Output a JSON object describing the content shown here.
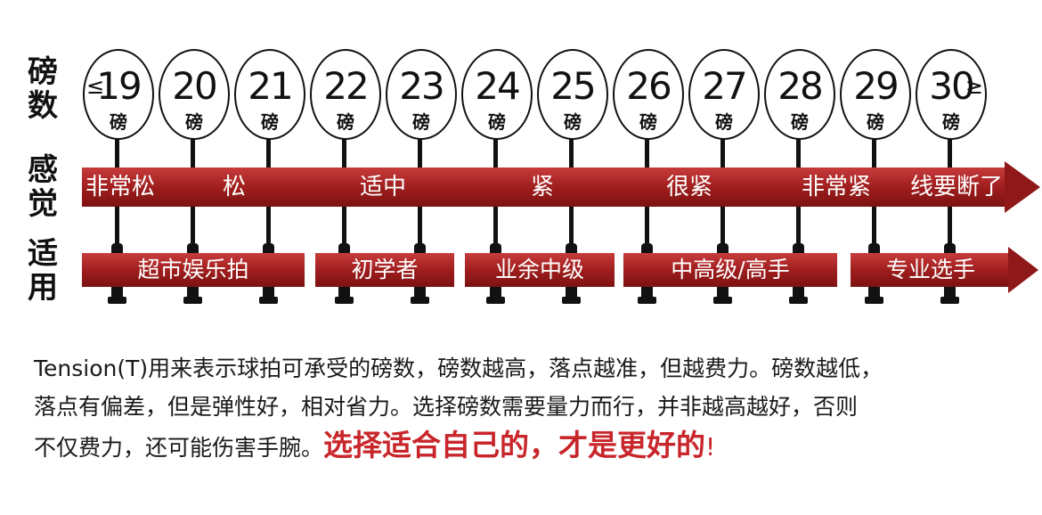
{
  "labels": {
    "tension": [
      "磅",
      "数"
    ],
    "feel": [
      "感",
      "觉"
    ],
    "fit": [
      "适",
      "用"
    ]
  },
  "rackets": [
    {
      "value": "19",
      "unit": "磅",
      "prefix": "≤"
    },
    {
      "value": "20",
      "unit": "磅"
    },
    {
      "value": "21",
      "unit": "磅"
    },
    {
      "value": "22",
      "unit": "磅"
    },
    {
      "value": "23",
      "unit": "磅"
    },
    {
      "value": "24",
      "unit": "磅"
    },
    {
      "value": "25",
      "unit": "磅"
    },
    {
      "value": "26",
      "unit": "磅"
    },
    {
      "value": "27",
      "unit": "磅"
    },
    {
      "value": "28",
      "unit": "磅"
    },
    {
      "value": "29",
      "unit": "磅"
    },
    {
      "value": "30",
      "unit": "磅",
      "suffix": "≥"
    }
  ],
  "feel": [
    "非常松",
    "松",
    "适中",
    "紧",
    "很紧",
    "非常紧",
    "线要断了"
  ],
  "fit": [
    "超市娱乐拍",
    "初学者",
    "业余中级",
    "中高级/高手",
    "专业选手"
  ],
  "description": {
    "line1": "Tension(T)用来表示球拍可承受的磅数，磅数越高，落点越准，但越费力。磅数越低，",
    "line2": "落点有偏差，但是弹性好，相对省力。选择磅数需要量力而行，并非越高越好，否则",
    "line3": "不仅费力，还可能伤害手腕。",
    "emphasis": "选择适合自己的，才是更好的",
    "exclaim": "!"
  },
  "colors": {
    "band": "#9c1c1c",
    "emphasis": "#c8262b"
  }
}
